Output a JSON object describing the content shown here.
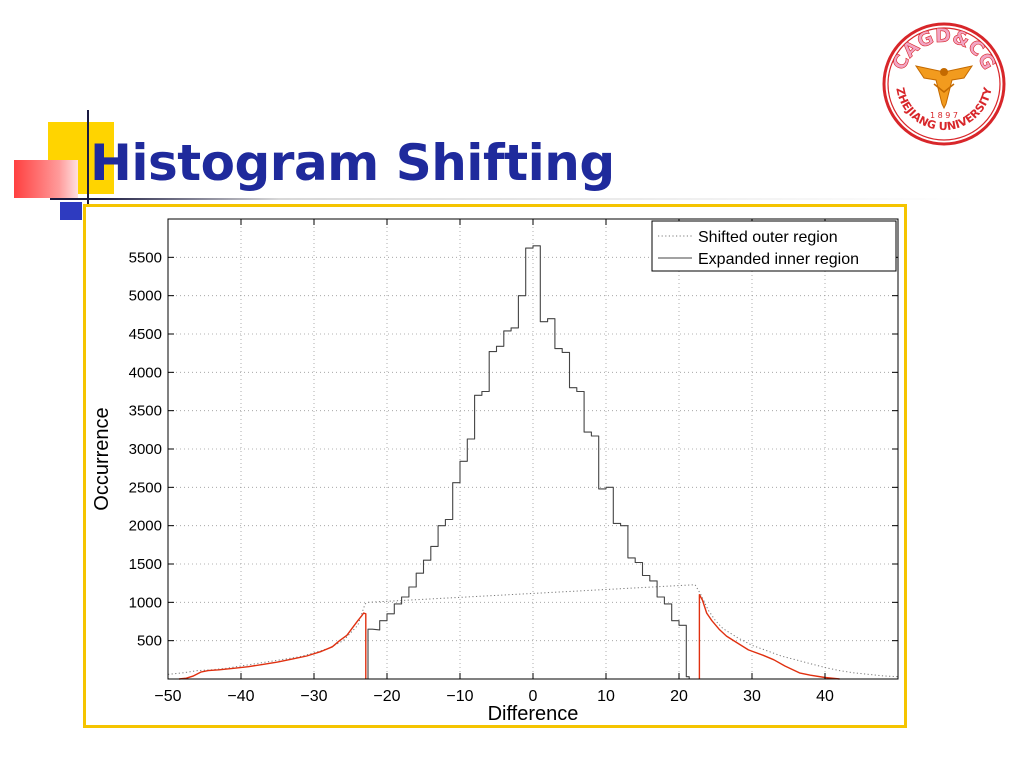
{
  "slide": {
    "title": "Histogram Shifting"
  },
  "logo": {
    "top_text": "CAGD&CG",
    "bottom_text": "ZHEJIANG UNIVERSITY",
    "year": "1 8 9 7",
    "ring_color": "#d8262a",
    "emblem_color": "#f29b1e"
  },
  "colors": {
    "title": "#1f2a9c",
    "frame_border": "#f5c400",
    "outer_region": "#e03010",
    "inner_region": "#444444"
  },
  "chart_data": {
    "type": "line",
    "title": "",
    "xlabel": "Difference",
    "ylabel": "Occurrence",
    "xlim": [
      -50,
      50
    ],
    "ylim": [
      0,
      6000
    ],
    "xticks": [
      -50,
      -40,
      -30,
      -20,
      -10,
      0,
      10,
      20,
      30,
      40
    ],
    "xtick_labels": [
      "−50",
      "−40",
      "−30",
      "−20",
      "−10",
      "0",
      "10",
      "20",
      "30",
      "40"
    ],
    "yticks": [
      500,
      1000,
      1500,
      2000,
      2500,
      3000,
      3500,
      4000,
      4500,
      5000,
      5500
    ],
    "ytick_labels": [
      "500",
      "1000",
      "1500",
      "2000",
      "2500",
      "3000",
      "3500",
      "4000",
      "4500",
      "5000",
      "5500"
    ],
    "grid": true,
    "legend_position": "top-right",
    "legend": [
      {
        "label": "Shifted outer region",
        "style": "dotted"
      },
      {
        "label": "Expanded inner region",
        "style": "solid"
      }
    ],
    "series": [
      {
        "name": "Shifted outer region",
        "style": "dotted",
        "x": [
          -50,
          -48,
          -46,
          -44,
          -42,
          -40,
          -38,
          -36,
          -34,
          -32,
          -30,
          -28,
          -26,
          -24,
          -23,
          -22.6,
          22.2,
          23,
          24,
          25,
          26,
          28,
          30,
          32,
          34,
          36,
          38,
          40,
          42,
          44,
          46,
          48,
          50
        ],
        "y": [
          60,
          80,
          110,
          120,
          140,
          170,
          200,
          230,
          260,
          290,
          340,
          400,
          500,
          700,
          980,
          1000,
          1230,
          1100,
          900,
          760,
          660,
          540,
          440,
          370,
          300,
          250,
          200,
          150,
          110,
          80,
          60,
          40,
          30
        ]
      },
      {
        "name": "Expanded inner region",
        "style": "solid",
        "x": [
          -22.6,
          -22.6,
          -22,
          -21,
          -21,
          -20,
          -20,
          -19,
          -19,
          -18,
          -18,
          -17,
          -17,
          -16,
          -16,
          -15,
          -15,
          -14,
          -14,
          -13,
          -13,
          -12,
          -12,
          -11,
          -11,
          -10,
          -10,
          -9,
          -9,
          -8,
          -8,
          -7,
          -7,
          -6,
          -6,
          -5,
          -5,
          -4,
          -4,
          -3,
          -3,
          -2,
          -2,
          -1,
          -1,
          0,
          0,
          1,
          1,
          2,
          2,
          3,
          3,
          4,
          4,
          5,
          5,
          6,
          6,
          7,
          7,
          8,
          8,
          9,
          9,
          10,
          10,
          11,
          11,
          12,
          12,
          13,
          13,
          14,
          14,
          15,
          15,
          16,
          16,
          17,
          17,
          18,
          18,
          19,
          19,
          20,
          20,
          21,
          21,
          21.4,
          21.4
        ],
        "y": [
          0,
          650,
          650,
          640,
          760,
          760,
          850,
          850,
          980,
          980,
          1070,
          1070,
          1200,
          1200,
          1380,
          1380,
          1550,
          1550,
          1730,
          1730,
          2000,
          2000,
          2080,
          2080,
          2560,
          2560,
          2840,
          2840,
          3130,
          3130,
          3700,
          3700,
          3750,
          3750,
          4270,
          4270,
          4340,
          4340,
          4540,
          4540,
          4580,
          4580,
          5000,
          5000,
          5620,
          5620,
          5650,
          5650,
          4660,
          4660,
          4700,
          4700,
          4310,
          4310,
          4260,
          4260,
          3800,
          3800,
          3750,
          3750,
          3220,
          3220,
          3170,
          3170,
          2480,
          2480,
          2500,
          2500,
          2030,
          2030,
          2000,
          2000,
          1580,
          1580,
          1520,
          1520,
          1350,
          1350,
          1280,
          1280,
          1070,
          1070,
          980,
          980,
          760,
          760,
          700,
          700,
          30,
          30,
          0
        ]
      },
      {
        "name": "",
        "style": "solid-red",
        "x": [
          -48.5,
          -47.5,
          -46.5,
          -45.5,
          -44.5,
          -43,
          -41,
          -39,
          -37,
          -35,
          -33,
          -31,
          -29,
          -27.5,
          -26.5,
          -25.5,
          -24.8,
          -24,
          -23.5,
          -23.2,
          -22.9,
          -22.9
        ],
        "y": [
          0,
          10,
          40,
          90,
          110,
          120,
          140,
          160,
          190,
          220,
          260,
          300,
          360,
          420,
          500,
          570,
          660,
          760,
          820,
          860,
          850,
          0
        ]
      },
      {
        "name": "",
        "style": "solid-red",
        "x": [
          22.8,
          22.8,
          23.2,
          23.8,
          24.5,
          25.5,
          26.5,
          28,
          29.5,
          31.5,
          33,
          34.5,
          36.5,
          38,
          40,
          42
        ],
        "y": [
          0,
          1100,
          1030,
          860,
          760,
          650,
          560,
          470,
          380,
          310,
          250,
          170,
          80,
          50,
          20,
          0
        ]
      }
    ]
  }
}
